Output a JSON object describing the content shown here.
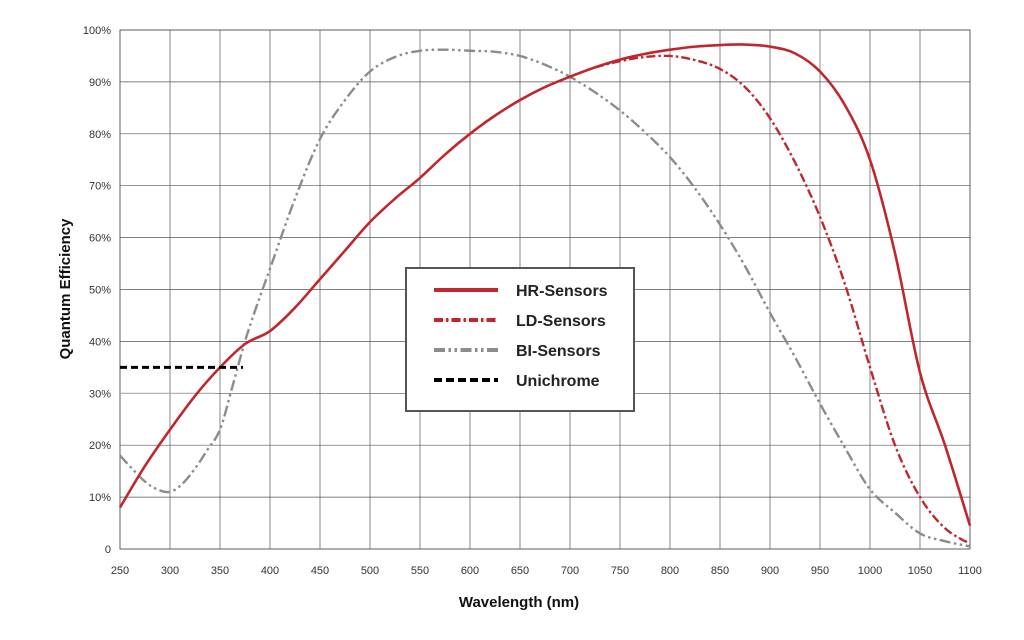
{
  "chart_data": {
    "type": "line",
    "xlabel": "Wavelength (nm)",
    "ylabel": "Quantum Efficiency",
    "xlim": [
      250,
      1100
    ],
    "ylim": [
      0,
      100
    ],
    "x_ticks": [
      250,
      300,
      350,
      400,
      450,
      500,
      550,
      600,
      650,
      700,
      750,
      800,
      850,
      900,
      950,
      1000,
      1050,
      1100
    ],
    "y_ticks": [
      0,
      10,
      20,
      30,
      40,
      50,
      60,
      70,
      80,
      90,
      100
    ],
    "x_tick_labels": [
      "250",
      "300",
      "350",
      "400",
      "450",
      "500",
      "550",
      "600",
      "650",
      "700",
      "750",
      "800",
      "850",
      "900",
      "950",
      "1000",
      "1050",
      "1100"
    ],
    "y_tick_labels": [
      "0",
      "10%",
      "20%",
      "30%",
      "40%",
      "50%",
      "60%",
      "70%",
      "80%",
      "90%",
      "100%"
    ],
    "grid": true,
    "legend_position": "center",
    "series": [
      {
        "name": "HR-Sensors",
        "color": "#c0272d",
        "dash": "solid",
        "points": [
          [
            250,
            8
          ],
          [
            275,
            16
          ],
          [
            300,
            23
          ],
          [
            325,
            29.5
          ],
          [
            350,
            35
          ],
          [
            375,
            39.5
          ],
          [
            400,
            42
          ],
          [
            425,
            46.5
          ],
          [
            450,
            52
          ],
          [
            475,
            57.5
          ],
          [
            500,
            63
          ],
          [
            525,
            67.5
          ],
          [
            550,
            71.5
          ],
          [
            575,
            76
          ],
          [
            600,
            80
          ],
          [
            625,
            83.5
          ],
          [
            650,
            86.5
          ],
          [
            675,
            89
          ],
          [
            700,
            91
          ],
          [
            725,
            92.8
          ],
          [
            750,
            94.3
          ],
          [
            775,
            95.4
          ],
          [
            800,
            96.2
          ],
          [
            825,
            96.8
          ],
          [
            850,
            97.1
          ],
          [
            875,
            97.2
          ],
          [
            900,
            96.8
          ],
          [
            925,
            95.5
          ],
          [
            950,
            92
          ],
          [
            975,
            85.5
          ],
          [
            1000,
            75
          ],
          [
            1025,
            57
          ],
          [
            1050,
            34
          ],
          [
            1075,
            20
          ],
          [
            1100,
            4.5
          ]
        ]
      },
      {
        "name": "LD-Sensors",
        "color": "#c0272d",
        "dash": "dashdot",
        "points": [
          [
            725,
            92.8
          ],
          [
            750,
            94
          ],
          [
            775,
            94.8
          ],
          [
            800,
            95
          ],
          [
            825,
            94.2
          ],
          [
            850,
            92.5
          ],
          [
            875,
            89
          ],
          [
            900,
            83
          ],
          [
            925,
            74.5
          ],
          [
            950,
            64
          ],
          [
            975,
            51
          ],
          [
            1000,
            35
          ],
          [
            1025,
            20
          ],
          [
            1050,
            10
          ],
          [
            1075,
            4
          ],
          [
            1100,
            1
          ]
        ]
      },
      {
        "name": "BI-Sensors",
        "color": "#8c8c8c",
        "dash": "dashdotdot",
        "points": [
          [
            250,
            18
          ],
          [
            262,
            15.5
          ],
          [
            275,
            13
          ],
          [
            287,
            11.5
          ],
          [
            300,
            11
          ],
          [
            312,
            12.5
          ],
          [
            325,
            15.5
          ],
          [
            337,
            19
          ],
          [
            350,
            23
          ],
          [
            362,
            31
          ],
          [
            375,
            40
          ],
          [
            387,
            47
          ],
          [
            400,
            54
          ],
          [
            425,
            67.5
          ],
          [
            450,
            79
          ],
          [
            475,
            86.5
          ],
          [
            500,
            92
          ],
          [
            525,
            94.8
          ],
          [
            550,
            96
          ],
          [
            575,
            96.2
          ],
          [
            600,
            96
          ],
          [
            625,
            95.8
          ],
          [
            650,
            95
          ],
          [
            675,
            93.3
          ],
          [
            700,
            91
          ],
          [
            725,
            88
          ],
          [
            750,
            84.5
          ],
          [
            775,
            80.3
          ],
          [
            800,
            75.5
          ],
          [
            825,
            69.5
          ],
          [
            850,
            62.5
          ],
          [
            875,
            54.5
          ],
          [
            900,
            45.5
          ],
          [
            925,
            37
          ],
          [
            950,
            28
          ],
          [
            975,
            19.5
          ],
          [
            1000,
            11.5
          ],
          [
            1025,
            7
          ],
          [
            1050,
            3
          ],
          [
            1075,
            1.5
          ],
          [
            1100,
            0.5
          ]
        ]
      },
      {
        "name": "Unichrome",
        "color": "#000000",
        "dash": "dashed",
        "points": [
          [
            250,
            35
          ],
          [
            373,
            35
          ]
        ]
      }
    ],
    "reference_lines": [
      {
        "color": "#aaaaaa",
        "points": [
          [
            250,
            30
          ],
          [
            345,
            30
          ]
        ]
      }
    ]
  }
}
